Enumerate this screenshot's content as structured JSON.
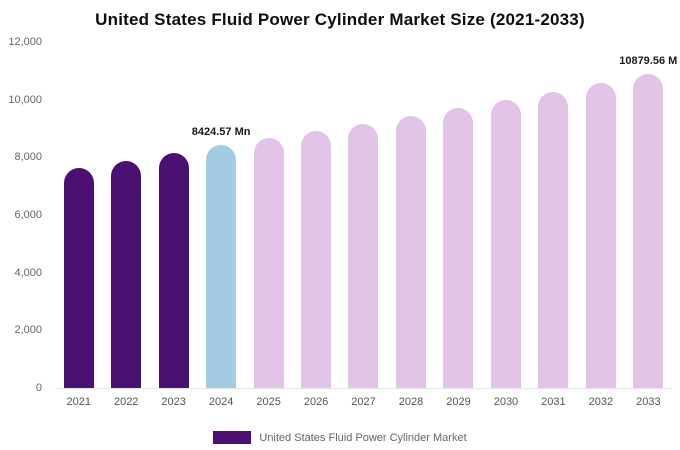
{
  "title": "United States Fluid Power Cylinder Market Size (2021-2033)",
  "legend": {
    "label": "United States Fluid Power Cylinder Market",
    "swatch_color": "#4A1173"
  },
  "chart_data": {
    "type": "bar",
    "title": "United States Fluid Power Cylinder Market Size (2021-2033)",
    "xlabel": "",
    "ylabel": "",
    "ylim": [
      0,
      12000
    ],
    "y_tick_labels": [
      "12,000",
      "10,000",
      "8,000",
      "6,000",
      "4,000",
      "2,000",
      "0"
    ],
    "y_tick_values": [
      12000,
      10000,
      8000,
      6000,
      4000,
      2000,
      0
    ],
    "grid": false,
    "legend_position": "bottom",
    "categories": [
      "2021",
      "2022",
      "2023",
      "2024",
      "2025",
      "2026",
      "2027",
      "2028",
      "2029",
      "2030",
      "2031",
      "2032",
      "2033"
    ],
    "series": [
      {
        "name": "United States Fluid Power Cylinder Market",
        "values": [
          7620,
          7890,
          8140,
          8424.57,
          8667,
          8916,
          9173,
          9436,
          9708,
          9987,
          10274,
          10570,
          10879.56
        ]
      }
    ],
    "bar_colors": {
      "historical": "#4A1173",
      "highlight_2024": "#A3CCE3",
      "forecast": "#E2C4E8"
    },
    "annotations": [
      {
        "category": "2024",
        "text": "8424.57 Mn"
      },
      {
        "category": "2033",
        "text": "10879.56 M"
      }
    ]
  }
}
